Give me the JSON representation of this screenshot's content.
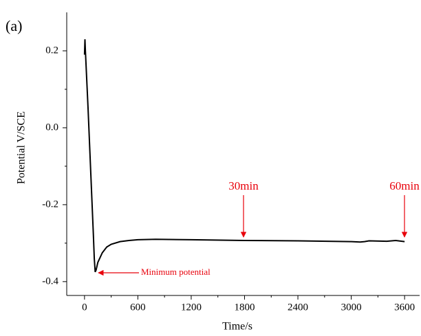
{
  "chart_data": {
    "type": "line",
    "panel_label": "(a)",
    "x_label": "Time/s",
    "y_label": "Potential V/SCE",
    "x": [
      0,
      5,
      10,
      20,
      40,
      60,
      80,
      100,
      110,
      120,
      130,
      150,
      200,
      250,
      300,
      400,
      500,
      600,
      800,
      1200,
      1800,
      2400,
      3000,
      3100,
      3150,
      3200,
      3400,
      3500,
      3600
    ],
    "series": [
      {
        "name": "Potential",
        "color": "#000000",
        "values": [
          0.19,
          0.23,
          0.2,
          0.15,
          0.05,
          -0.06,
          -0.17,
          -0.28,
          -0.34,
          -0.375,
          -0.37,
          -0.35,
          -0.325,
          -0.31,
          -0.303,
          -0.296,
          -0.293,
          -0.291,
          -0.29,
          -0.291,
          -0.293,
          -0.294,
          -0.296,
          -0.297,
          -0.296,
          -0.294,
          -0.295,
          -0.293,
          -0.296
        ]
      }
    ],
    "xlim": [
      -200,
      3800
    ],
    "ylim": [
      -0.436,
      0.3
    ],
    "xticks": [
      0,
      600,
      1200,
      1800,
      2400,
      3000,
      3600
    ],
    "yticks": [
      -0.4,
      -0.2,
      {
        "value": 0,
        "label": "0.0"
      },
      0.2
    ],
    "annotations": [
      {
        "text": "30min",
        "color": "#e8000b"
      },
      {
        "text": "60min",
        "color": "#e8000b"
      },
      {
        "text": "Minimum potential",
        "color": "#e8000b"
      }
    ]
  }
}
